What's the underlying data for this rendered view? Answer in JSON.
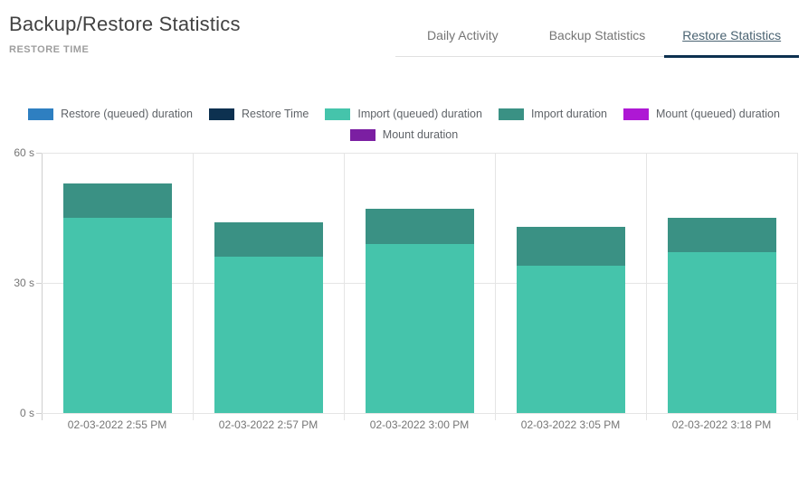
{
  "header": {
    "title": "Backup/Restore Statistics",
    "section_label": "RESTORE TIME"
  },
  "tabs": [
    {
      "label": "Daily Activity",
      "active": false
    },
    {
      "label": "Backup Statistics",
      "active": false
    },
    {
      "label": "Restore Statistics",
      "active": true
    }
  ],
  "colors": {
    "restore_queued_duration": "#2e7fc1",
    "restore_time": "#0d3150",
    "import_queued_duration": "#45c4ab",
    "import_duration": "#3a9184",
    "mount_queued_duration": "#ae18d4",
    "mount_duration": "#7b1fa2",
    "active_tab_indicator": "#0d3150",
    "active_tab_text": "#4a6372",
    "inactive_tab_text": "#757575"
  },
  "legend": [
    {
      "label": "Restore (queued) duration",
      "color": "#2e7fc1"
    },
    {
      "label": "Restore Time",
      "color": "#0d3150"
    },
    {
      "label": "Import (queued) duration",
      "color": "#45c4ab"
    },
    {
      "label": "Import duration",
      "color": "#3a9184"
    },
    {
      "label": "Mount (queued) duration",
      "color": "#ae18d4"
    },
    {
      "label": "Mount duration",
      "color": "#7b1fa2"
    }
  ],
  "chart_data": {
    "type": "bar",
    "stacked": true,
    "title": "RESTORE TIME",
    "unit": "seconds",
    "categories": [
      "02-03-2022 2:55 PM",
      "02-03-2022 2:57 PM",
      "02-03-2022 3:00 PM",
      "02-03-2022 3:05 PM",
      "02-03-2022 3:18 PM"
    ],
    "series": [
      {
        "name": "Restore (queued) duration",
        "color": "#2e7fc1",
        "values": [
          0,
          0,
          0,
          0,
          0
        ]
      },
      {
        "name": "Restore Time",
        "color": "#0d3150",
        "values": [
          0,
          0,
          0,
          0,
          0
        ]
      },
      {
        "name": "Import (queued) duration",
        "color": "#45c4ab",
        "values": [
          45,
          36,
          39,
          34,
          37
        ]
      },
      {
        "name": "Import duration",
        "color": "#3a9184",
        "values": [
          8,
          8,
          8,
          9,
          8
        ]
      },
      {
        "name": "Mount (queued) duration",
        "color": "#ae18d4",
        "values": [
          0,
          0,
          0,
          0,
          0
        ]
      },
      {
        "name": "Mount duration",
        "color": "#7b1fa2",
        "values": [
          0,
          0,
          0,
          0,
          0
        ]
      }
    ],
    "ylim": [
      0,
      60
    ],
    "yticks": [
      {
        "value": 60,
        "label": "60 s"
      },
      {
        "value": 30,
        "label": "30 s"
      },
      {
        "value": 0,
        "label": "0 s"
      }
    ],
    "grid": true,
    "legend_position": "top"
  }
}
